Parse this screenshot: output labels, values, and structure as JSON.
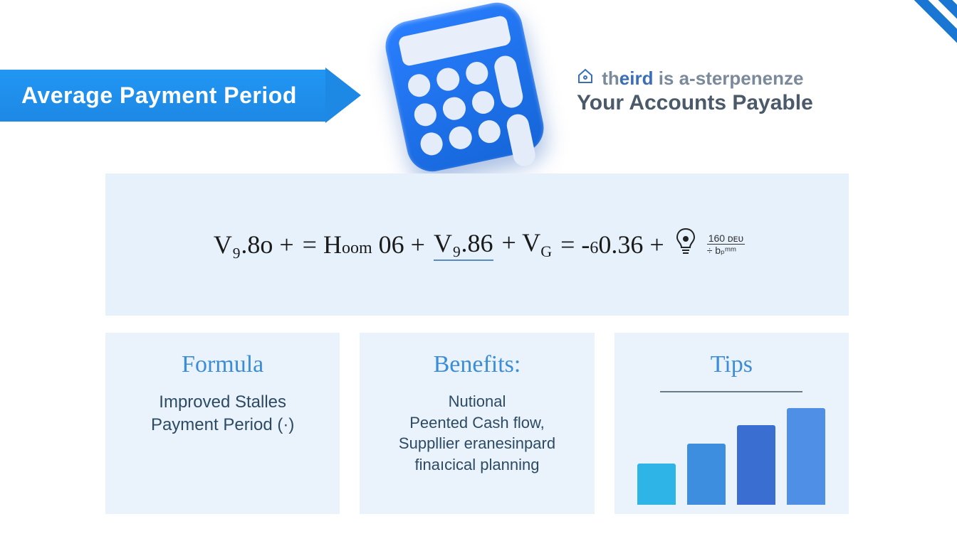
{
  "title": "Average Payment Period",
  "tagline": {
    "line1_prefix": "th",
    "line1_bold": "eird",
    "line1_rest": " is a-sterpenenze",
    "line2": "Your Accounts Payable"
  },
  "formula": {
    "seg1": "V₉.8o  +",
    "seg2": "= H",
    "seg2_small": "oom",
    "seg3": " 06 +",
    "seg4": "V₉.86",
    "seg5": "+ V",
    "seg5_sub": "G",
    "seg6": "  =  -",
    "seg6_small": "6",
    "seg7": "0.36 +",
    "frac_top": "160 ᴅᴇᴜ",
    "frac_bot": "÷ bₚᵐᵐ"
  },
  "cards": {
    "formula": {
      "heading": "Formula",
      "body": "Improved Stalles\nPayment Period (·)"
    },
    "benefits": {
      "heading": "Benefits:",
      "body": "Nutional\nPeented Cash flow,\nSuppllier eranesinpard\nfinaıcical planning"
    },
    "tips": {
      "heading": "Tips",
      "bars": {
        "heights": [
          58,
          86,
          112,
          136
        ],
        "colors": [
          "#2eb4e6",
          "#3e8ee0",
          "#3a6fd1",
          "#4f8fe6"
        ]
      }
    }
  },
  "colors": {
    "banner": "#1e88e5",
    "card_bg": "#eaf3fc",
    "formula_bg": "#e7f1fb",
    "heading": "#3a8dd6"
  }
}
